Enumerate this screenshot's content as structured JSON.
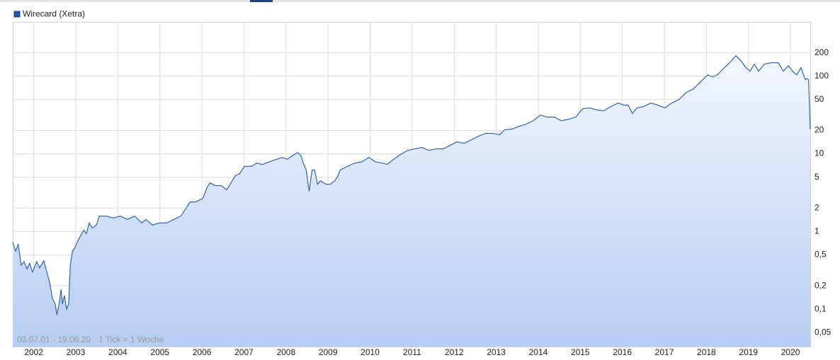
{
  "chart_data": {
    "type": "area",
    "title": "Wirecard (Xetra)",
    "annotations": [
      "03.07.01 - 19.06.20",
      "1 Tick = 1 Woche"
    ],
    "yscale": "log",
    "grid": true,
    "legend": "top-left",
    "xlim": [
      2001.5,
      2020.47
    ],
    "xticks": [
      2002,
      2003,
      2004,
      2005,
      2006,
      2007,
      2008,
      2009,
      2010,
      2011,
      2012,
      2013,
      2014,
      2015,
      2016,
      2017,
      2018,
      2019,
      2020
    ],
    "ylim": [
      0.033,
      500
    ],
    "yticks": [
      {
        "value": 0.05,
        "label": "0,05"
      },
      {
        "value": 0.1,
        "label": "0,1"
      },
      {
        "value": 0.2,
        "label": "0,2"
      },
      {
        "value": 0.5,
        "label": "0,5"
      },
      1,
      2,
      5,
      10,
      20,
      50,
      100,
      200
    ],
    "x": [
      2001.5,
      2001.57,
      2001.63,
      2001.7,
      2001.77,
      2001.84,
      2001.9,
      2001.97,
      2002.07,
      2002.14,
      2002.24,
      2002.31,
      2002.38,
      2002.44,
      2002.51,
      2002.55,
      2002.6,
      2002.65,
      2002.68,
      2002.73,
      2002.78,
      2002.83,
      2002.87,
      2002.92,
      2002.98,
      2003.05,
      2003.14,
      2003.19,
      2003.25,
      2003.32,
      2003.39,
      2003.49,
      2003.56,
      2003.73,
      2003.89,
      2004.06,
      2004.23,
      2004.4,
      2004.57,
      2004.67,
      2004.82,
      2004.99,
      2005.16,
      2005.33,
      2005.5,
      2005.61,
      2005.72,
      2005.85,
      2006.02,
      2006.12,
      2006.19,
      2006.32,
      2006.46,
      2006.59,
      2006.69,
      2006.79,
      2006.9,
      2007.01,
      2007.18,
      2007.3,
      2007.44,
      2007.6,
      2007.77,
      2007.91,
      2008.03,
      2008.14,
      2008.28,
      2008.36,
      2008.41,
      2008.48,
      2008.55,
      2008.62,
      2008.68,
      2008.75,
      2008.82,
      2008.95,
      2009.05,
      2009.16,
      2009.22,
      2009.29,
      2009.46,
      2009.63,
      2009.8,
      2009.97,
      2010.13,
      2010.3,
      2010.4,
      2010.56,
      2010.72,
      2010.89,
      2011.06,
      2011.23,
      2011.4,
      2011.57,
      2011.74,
      2011.91,
      2012.07,
      2012.24,
      2012.41,
      2012.58,
      2012.75,
      2012.92,
      2013.08,
      2013.2,
      2013.37,
      2013.54,
      2013.71,
      2013.88,
      2014.05,
      2014.22,
      2014.38,
      2014.55,
      2014.72,
      2014.89,
      2015.06,
      2015.23,
      2015.4,
      2015.56,
      2015.73,
      2015.9,
      2016.04,
      2016.14,
      2016.24,
      2016.34,
      2016.51,
      2016.68,
      2016.85,
      2017.01,
      2017.18,
      2017.35,
      2017.52,
      2017.69,
      2017.86,
      2018.03,
      2018.14,
      2018.26,
      2018.43,
      2018.6,
      2018.7,
      2018.82,
      2018.94,
      2019.04,
      2019.14,
      2019.24,
      2019.38,
      2019.54,
      2019.71,
      2019.83,
      2019.95,
      2020.05,
      2020.15,
      2020.25,
      2020.35,
      2020.4,
      2020.43,
      2020.47
    ],
    "series": [
      {
        "name": "Wirecard (Xetra)",
        "color": "#2358a8",
        "values": [
          0.73,
          0.56,
          0.69,
          0.37,
          0.41,
          0.33,
          0.39,
          0.3,
          0.41,
          0.34,
          0.42,
          0.3,
          0.22,
          0.14,
          0.116,
          0.085,
          0.116,
          0.18,
          0.116,
          0.15,
          0.1,
          0.116,
          0.37,
          0.56,
          0.62,
          0.76,
          0.94,
          1.04,
          0.94,
          1.29,
          1.11,
          1.21,
          1.58,
          1.58,
          1.49,
          1.58,
          1.43,
          1.58,
          1.29,
          1.43,
          1.21,
          1.29,
          1.29,
          1.43,
          1.58,
          1.95,
          2.41,
          2.41,
          2.67,
          3.66,
          4.24,
          3.9,
          3.9,
          3.44,
          4.24,
          5.2,
          5.6,
          6.9,
          6.9,
          7.6,
          7.3,
          7.9,
          8.5,
          9.0,
          8.5,
          9.4,
          10.4,
          9.4,
          7.6,
          6.2,
          3.3,
          6.2,
          6.2,
          4.06,
          4.5,
          4.06,
          4.06,
          4.5,
          5.0,
          6.2,
          6.9,
          7.6,
          7.9,
          9.0,
          7.9,
          7.6,
          7.3,
          8.5,
          9.8,
          11.1,
          11.6,
          12.1,
          11.1,
          11.6,
          11.6,
          12.9,
          14.3,
          13.7,
          15.2,
          16.9,
          18.4,
          18.4,
          17.6,
          20.4,
          20.8,
          22.6,
          24.1,
          26.7,
          31.6,
          29.7,
          29.7,
          26.7,
          27.9,
          29.7,
          38.2,
          39.0,
          36.6,
          35.9,
          40.7,
          45.2,
          42.4,
          42.4,
          33.0,
          39.0,
          40.7,
          45.2,
          42.4,
          39.0,
          45.2,
          50.1,
          61.8,
          68.6,
          84.6,
          104,
          98,
          104,
          129,
          158,
          184,
          158,
          129,
          116,
          143,
          116,
          143,
          149,
          149,
          116,
          137,
          116,
          104,
          129,
          90,
          94,
          90,
          20.8
        ]
      }
    ]
  }
}
